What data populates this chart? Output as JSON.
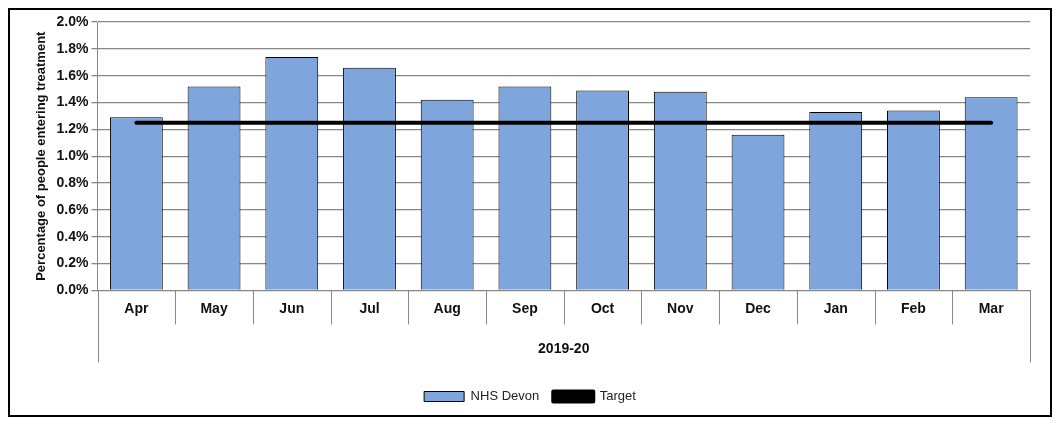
{
  "chart_data": {
    "type": "bar",
    "ylabel": "Percentage of people entering treatment",
    "xlabel": "2019-20",
    "categories": [
      "Apr",
      "May",
      "Jun",
      "Jul",
      "Aug",
      "Sep",
      "Oct",
      "Nov",
      "Dec",
      "Jan",
      "Feb",
      "Mar"
    ],
    "series": [
      {
        "name": "NHS Devon",
        "color": "#7fa6dc",
        "values": [
          1.29,
          1.52,
          1.74,
          1.66,
          1.42,
          1.52,
          1.49,
          1.48,
          1.16,
          1.33,
          1.34,
          1.44
        ]
      },
      {
        "name": "Target",
        "type": "line",
        "color": "#000000",
        "values": [
          1.25,
          1.25,
          1.25,
          1.25,
          1.25,
          1.25,
          1.25,
          1.25,
          1.25,
          1.25,
          1.25,
          1.25
        ]
      }
    ],
    "ylim": [
      0,
      2
    ],
    "yticks": [
      {
        "value": 0,
        "label": "0.0%"
      },
      {
        "value": 0.2,
        "label": "0.2%"
      },
      {
        "value": 0.4,
        "label": "0.4%"
      },
      {
        "value": 0.6,
        "label": "0.6%"
      },
      {
        "value": 0.8,
        "label": "0.8%"
      },
      {
        "value": 1,
        "label": "1.0%"
      },
      {
        "value": 1.2,
        "label": "1.2%"
      },
      {
        "value": 1.4,
        "label": "1.4%"
      },
      {
        "value": 1.6,
        "label": "1.6%"
      },
      {
        "value": 1.8,
        "label": "1.8%"
      },
      {
        "value": 2,
        "label": "2.0%"
      }
    ],
    "grid": "y",
    "legend": "bottom",
    "marker": "none",
    "line_style": "solid"
  }
}
